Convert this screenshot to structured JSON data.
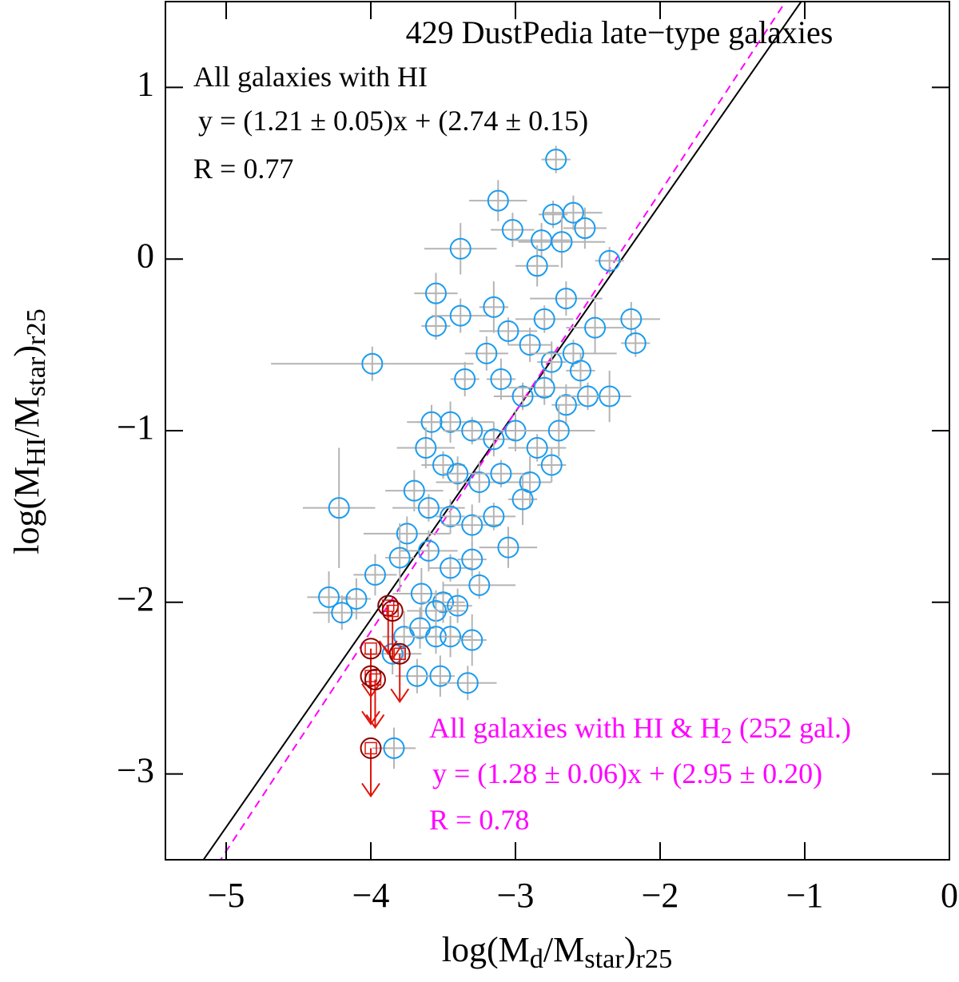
{
  "chart_data": {
    "type": "scatter",
    "title": "429 DustPedia late−type   galaxies",
    "x_label": [
      "log(M",
      "d",
      "/M",
      "star",
      ")",
      "r25"
    ],
    "y_label": [
      "log(M",
      "HI",
      "/M",
      "star",
      ")",
      "r25"
    ],
    "xlim": [
      -5.42,
      0
    ],
    "ylim": [
      -3.5,
      1.5
    ],
    "xticks": [
      {
        "value": -5,
        "label": "−5"
      },
      {
        "value": -4,
        "label": "−4"
      },
      {
        "value": -3,
        "label": "−3"
      },
      {
        "value": -2,
        "label": "−2"
      },
      {
        "value": -1,
        "label": "−1"
      },
      0
    ],
    "yticks": [
      {
        "value": -3,
        "label": "−3"
      },
      {
        "value": -2,
        "label": "−2"
      },
      {
        "value": -1,
        "label": "−1"
      },
      0,
      1
    ],
    "annotations": [
      {
        "text": [
          "All galaxies with HI"
        ],
        "color": "#000000"
      },
      {
        "text": [
          "y = (1.21 ± 0.05)x + (2.74 ± 0.15)"
        ],
        "color": "#000000"
      },
      {
        "text": [
          "R = 0.77"
        ],
        "color": "#000000"
      },
      {
        "text": [
          "All galaxies with HI & H",
          "2",
          " (252 gal.)"
        ],
        "color": "#ff00ff"
      },
      {
        "text": [
          "y = (1.28 ± 0.06)x + (2.95 ± 0.20)"
        ],
        "color": "#ff00ff"
      },
      {
        "text": [
          "R = 0.78"
        ],
        "color": "#ff00ff"
      }
    ],
    "fits": [
      {
        "slope": 1.21,
        "intercept": 2.74,
        "color": "#000000",
        "dashed": false
      },
      {
        "slope": 1.28,
        "intercept": 2.95,
        "color": "#ff00ff",
        "dashed": true
      }
    ],
    "series": [
      {
        "color": "#1a9cf0",
        "error_color": "#b4b4b4",
        "upper_limit": false,
        "x": [
          -2.72,
          -3.12,
          -3.02,
          -3.38,
          -2.74,
          -2.6,
          -2.52,
          -2.35,
          -2.68,
          -2.82,
          -3.55,
          -3.55,
          -3.38,
          -2.2,
          -2.17,
          -3.99,
          -2.85,
          -2.65,
          -3.15,
          -3.05,
          -2.9,
          -2.75,
          -2.6,
          -2.45,
          -3.2,
          -3.1,
          -2.95,
          -2.8,
          -2.65,
          -2.5,
          -2.35,
          -3.35,
          -3.45,
          -3.3,
          -3.15,
          -3.0,
          -2.85,
          -2.7,
          -3.58,
          -3.62,
          -3.5,
          -3.4,
          -3.25,
          -3.1,
          -2.9,
          -2.75,
          -3.7,
          -3.6,
          -3.45,
          -3.3,
          -3.15,
          -2.95,
          -3.75,
          -3.6,
          -3.45,
          -3.3,
          -3.05,
          -3.25,
          -4.22,
          -4.29,
          -4.1,
          -4.2,
          -3.97,
          -3.8,
          -3.65,
          -3.5,
          -3.4,
          -3.55,
          -3.77,
          -3.66,
          -3.55,
          -3.45,
          -3.3,
          -3.85,
          -3.68,
          -3.52,
          -3.33,
          -3.84,
          -2.55,
          -2.8
        ],
        "values": [
          0.58,
          0.34,
          0.17,
          0.06,
          0.26,
          0.27,
          0.18,
          -0.01,
          0.1,
          0.11,
          -0.2,
          -0.39,
          -0.33,
          -0.35,
          -0.49,
          -0.61,
          -0.04,
          -0.23,
          -0.28,
          -0.42,
          -0.5,
          -0.6,
          -0.55,
          -0.4,
          -0.55,
          -0.7,
          -0.8,
          -0.75,
          -0.85,
          -0.8,
          -0.8,
          -0.7,
          -0.95,
          -1.0,
          -1.05,
          -1.0,
          -1.1,
          -1.0,
          -0.95,
          -1.1,
          -1.2,
          -1.25,
          -1.3,
          -1.25,
          -1.3,
          -1.2,
          -1.35,
          -1.45,
          -1.5,
          -1.55,
          -1.5,
          -1.4,
          -1.6,
          -1.7,
          -1.8,
          -1.75,
          -1.68,
          -1.9,
          -1.45,
          -1.97,
          -1.98,
          -2.06,
          -1.84,
          -1.74,
          -1.95,
          -2.0,
          -2.02,
          -2.05,
          -2.2,
          -2.15,
          -2.2,
          -2.2,
          -2.22,
          -2.3,
          -2.43,
          -2.43,
          -2.47,
          -2.85,
          -0.65,
          -0.35
        ],
        "xerr": [
          0.1,
          0.2,
          0.15,
          0.25,
          0.1,
          0.2,
          0.15,
          0.1,
          0.3,
          0.2,
          0.15,
          0.1,
          0.2,
          0.2,
          0.1,
          0.7,
          0.15,
          0.25,
          0.1,
          0.2,
          0.15,
          0.1,
          0.3,
          0.2,
          0.15,
          0.1,
          0.2,
          0.25,
          0.1,
          0.2,
          0.15,
          0.1,
          0.3,
          0.2,
          0.15,
          0.1,
          0.2,
          0.25,
          0.1,
          0.2,
          0.15,
          0.1,
          0.3,
          0.2,
          0.15,
          0.1,
          0.2,
          0.25,
          0.1,
          0.2,
          0.15,
          0.1,
          0.3,
          0.2,
          0.15,
          0.1,
          0.2,
          0.25,
          0.25,
          0.15,
          0.1,
          0.2,
          0.15,
          0.1,
          0.2,
          0.15,
          0.1,
          0.2,
          0.15,
          0.1,
          0.2,
          0.15,
          0.1,
          0.2,
          0.15,
          0.1,
          0.2,
          0.15,
          0.1,
          0.2
        ],
        "yerr": [
          0.08,
          0.12,
          0.1,
          0.15,
          0.08,
          0.1,
          0.12,
          0.08,
          0.15,
          0.1,
          0.12,
          0.08,
          0.1,
          0.1,
          0.08,
          0.1,
          0.12,
          0.1,
          0.15,
          0.08,
          0.1,
          0.12,
          0.08,
          0.15,
          0.1,
          0.12,
          0.08,
          0.1,
          0.12,
          0.08,
          0.15,
          0.1,
          0.12,
          0.08,
          0.1,
          0.12,
          0.08,
          0.15,
          0.1,
          0.12,
          0.08,
          0.1,
          0.12,
          0.08,
          0.15,
          0.1,
          0.12,
          0.08,
          0.1,
          0.12,
          0.08,
          0.15,
          0.1,
          0.12,
          0.08,
          0.1,
          0.12,
          0.08,
          0.35,
          0.15,
          0.12,
          0.1,
          0.12,
          0.2,
          0.15,
          0.12,
          0.1,
          0.12,
          0.15,
          0.12,
          0.1,
          0.12,
          0.15,
          0.12,
          0.1,
          0.12,
          0.1,
          0.12,
          0.1,
          0.08
        ]
      },
      {
        "color": "#e0140a",
        "upper_limit": true,
        "x": [
          -3.88,
          -3.85,
          -4.0,
          -4.0,
          -3.97,
          -3.8,
          -4.0
        ],
        "values": [
          -2.02,
          -2.05,
          -2.27,
          -2.43,
          -2.45,
          -2.3,
          -2.85
        ]
      }
    ]
  }
}
